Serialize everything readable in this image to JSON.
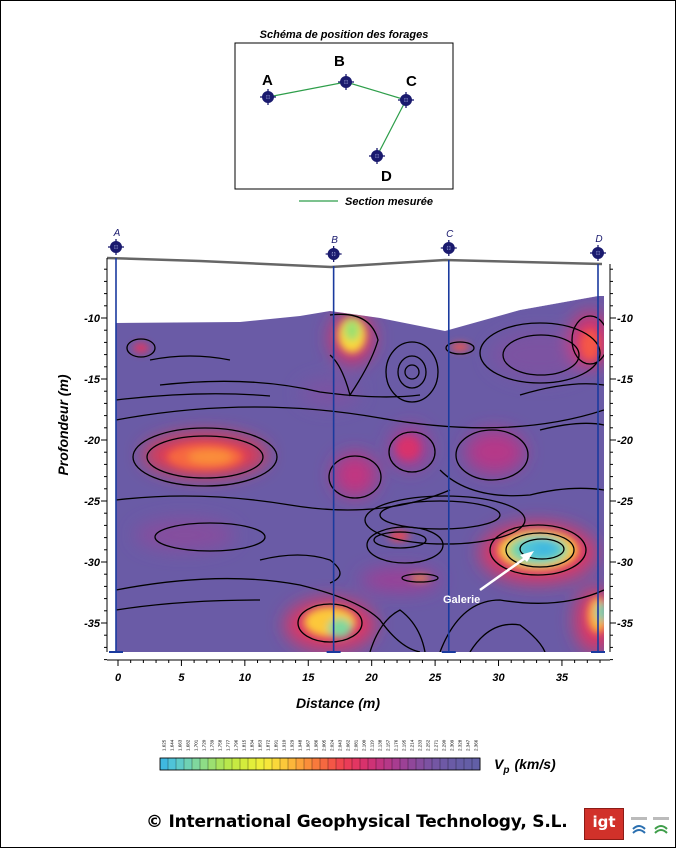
{
  "schema": {
    "title": "Schéma de position des forages",
    "boreholes": [
      "A",
      "B",
      "C",
      "D"
    ],
    "legend_label": "Section mesurée",
    "line_color": "#2e9e4a"
  },
  "chart_data": {
    "type": "heatmap",
    "xlabel": "Distance (m)",
    "ylabel": "Profondeur (m)",
    "xlim": [
      0,
      38
    ],
    "ylim": [
      -38,
      -5
    ],
    "x_ticks": [
      "0",
      "5",
      "10",
      "15",
      "20",
      "25",
      "30",
      "35"
    ],
    "y_ticks": [
      "-10",
      "-15",
      "-20",
      "-25",
      "-30",
      "-35"
    ],
    "borehole_labels": [
      "A",
      "B",
      "C",
      "D"
    ],
    "borehole_x": [
      0,
      17,
      26,
      38
    ],
    "annotation": "Galerie",
    "colorbar_label": "V",
    "colorbar_sub": "p",
    "colorbar_unit": "(km/s)",
    "colorbar_ticks": [
      "1.625",
      "1.644",
      "1.663",
      "1.682",
      "1.701",
      "1.720",
      "1.739",
      "1.758",
      "1.777",
      "1.796",
      "1.815",
      "1.834",
      "1.853",
      "1.872",
      "1.891",
      "1.910",
      "1.929",
      "1.948",
      "1.967",
      "1.986",
      "2.005",
      "2.024",
      "2.043",
      "2.062",
      "2.081",
      "2.100",
      "2.119",
      "2.138",
      "2.157",
      "2.176",
      "2.195",
      "2.214",
      "2.233",
      "2.252",
      "2.271",
      "2.290",
      "2.309",
      "2.328",
      "2.347",
      "2.366"
    ],
    "colorbar_colors": [
      "#3fb8e0",
      "#4fc3d8",
      "#5fcbc8",
      "#6fd2b4",
      "#7fd79e",
      "#8edc86",
      "#9ce070",
      "#aae45c",
      "#b8e84c",
      "#c6ea42",
      "#d4ec3c",
      "#e2ee3a",
      "#eeee3a",
      "#f6e63a",
      "#fad83a",
      "#fcc83a",
      "#fcb63a",
      "#fca23a",
      "#fa8e3a",
      "#f87a3c",
      "#f66840",
      "#f45646",
      "#f0464e",
      "#ea3c58",
      "#e23662",
      "#d8326c",
      "#ce3276",
      "#c23480",
      "#b63888",
      "#a83c90",
      "#9c4196",
      "#90479a",
      "#864d9e",
      "#7c52a2",
      "#7456a4",
      "#6e59a6",
      "#6a5ba6",
      "#665da6",
      "#645ea6",
      "#625fa6"
    ],
    "background_velocity_color": "#6a5ba6"
  },
  "footer": {
    "copyright": "© International Geophysical Technology, S.L.",
    "logo_text": "igt"
  }
}
